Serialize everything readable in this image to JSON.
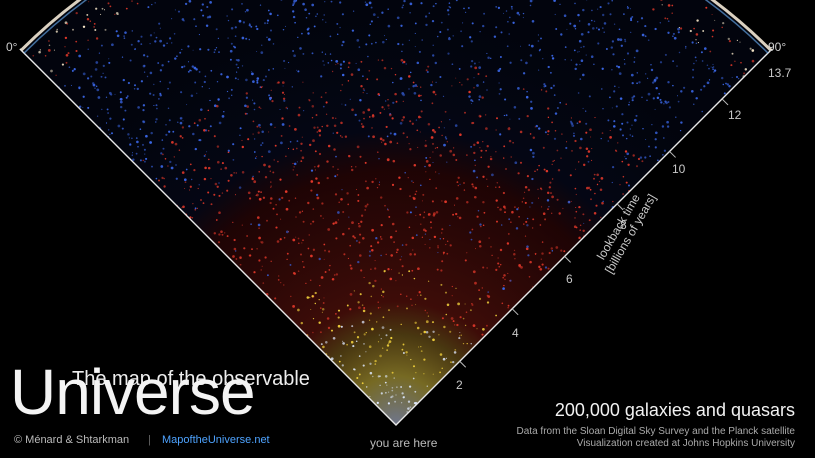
{
  "angles": {
    "left": "0°",
    "right": "90°"
  },
  "ticks": [
    "2",
    "4",
    "6",
    "8",
    "10",
    "12",
    "13.7"
  ],
  "axis": {
    "line1": "lookback time",
    "line2": "[billions of years]"
  },
  "you_are_here": "you are here",
  "title": {
    "prefix": "The map of the observable",
    "main": "Universe"
  },
  "credit": "© Ménard & Shtarkman",
  "separator": "|",
  "website": "MapoftheUniverse.net",
  "count": "200,000 galaxies and quasars",
  "source": {
    "line1": "Data from the Sloan Digital Sky Survey and the Planck satellite",
    "line2": "Visualization created at Johns Hopkins University"
  },
  "colors": {
    "near": "#dfe9ff",
    "yellow": "#f2d23c",
    "red": "#e2382a",
    "blue": "#3a66e6",
    "cmb": "#f6e6c8",
    "link": "#4ea3ff"
  }
}
